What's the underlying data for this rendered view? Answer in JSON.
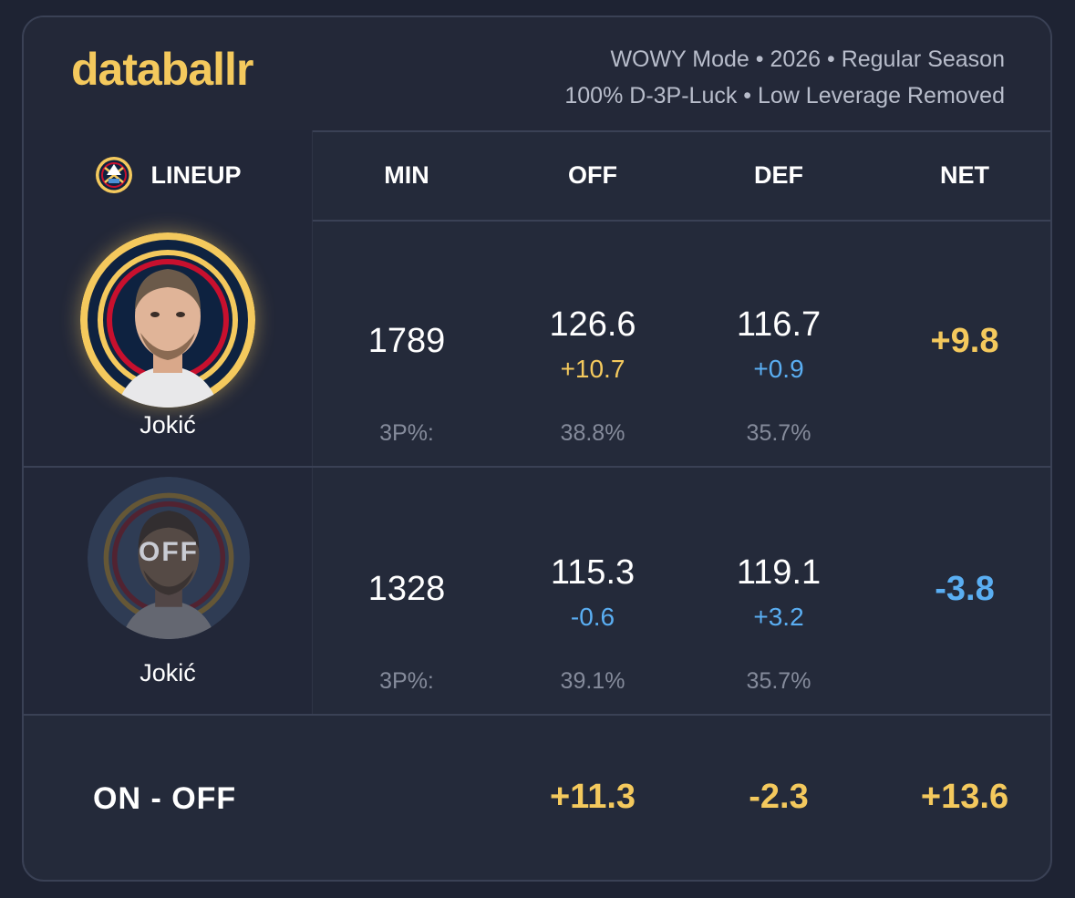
{
  "brand": "databallr",
  "meta": {
    "line1": "WOWY Mode • 2026 • Regular Season",
    "line2": "100% D-3P-Luck • Low Leverage Removed"
  },
  "columns": {
    "lineup": "LINEUP",
    "min": "MIN",
    "off": "OFF",
    "def": "DEF",
    "net": "NET"
  },
  "team_icon": "nuggets-logo-icon",
  "rows": [
    {
      "player": "Jokić",
      "status": "on",
      "min": "1789",
      "off": "126.6",
      "off_delta": "+10.7",
      "def": "116.7",
      "def_delta": "+0.9",
      "net": "+9.8",
      "tp_label": "3P%:",
      "off_3p": "38.8%",
      "def_3p": "35.7%"
    },
    {
      "player": "Jokić",
      "status": "off",
      "off_badge": "OFF",
      "min": "1328",
      "off": "115.3",
      "off_delta": "-0.6",
      "def": "119.1",
      "def_delta": "+3.2",
      "net": "-3.8",
      "tp_label": "3P%:",
      "off_3p": "39.1%",
      "def_3p": "35.7%"
    }
  ],
  "summary": {
    "label": "ON - OFF",
    "off": "+11.3",
    "def": "-2.3",
    "net": "+13.6"
  },
  "colors": {
    "accent_gold": "#f4c95d",
    "accent_blue": "#5aaef2",
    "background": "#242a3a"
  }
}
